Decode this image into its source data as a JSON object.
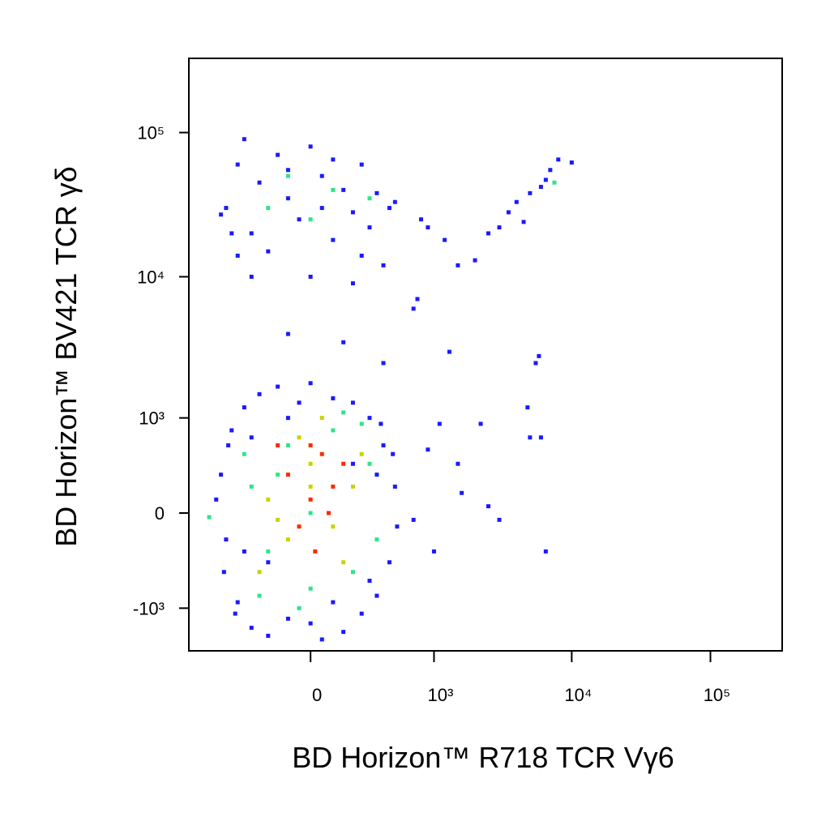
{
  "chart_data": {
    "type": "scatter",
    "x_label": "BD Horizon™ R718  TCR Vγ6",
    "y_label": "BD Horizon™ BV421  TCR γδ",
    "scale": "biexponential",
    "xlim": [
      -970,
      329000
    ],
    "ylim": [
      -2050,
      327000
    ],
    "xticks": [
      0,
      {
        "value": 1000,
        "label": "10³"
      },
      {
        "value": 10000,
        "label": "10⁴"
      },
      {
        "value": 100000,
        "label": "10⁵"
      }
    ],
    "yticks": [
      {
        "value": -1000,
        "label": "-10³"
      },
      0,
      {
        "value": 1000,
        "label": "10³"
      },
      {
        "value": 10000,
        "label": "10⁴"
      },
      {
        "value": 100000,
        "label": "10⁵"
      }
    ],
    "series": [
      {
        "color": "#1a1aff",
        "x": [
          -550,
          -500,
          -450,
          -400,
          -350,
          -300,
          -250,
          -200,
          -150,
          -100,
          0,
          50,
          100,
          150,
          200,
          250,
          300,
          350,
          400,
          450,
          500,
          520,
          480,
          -520,
          -480,
          -420,
          380,
          -600,
          -300,
          300,
          -200,
          200,
          -100,
          100,
          -350,
          350,
          0,
          -50,
          -500,
          -400,
          -300,
          -250,
          -200,
          -150,
          -100,
          -50,
          0,
          50,
          100,
          150,
          200,
          250,
          300,
          350,
          400,
          450,
          -450,
          -350,
          -300,
          0,
          200,
          500,
          -550,
          100,
          -100,
          250,
          -400,
          50,
          800,
          900,
          1200,
          1500,
          2000,
          2500,
          3000,
          3500,
          4000,
          5000,
          6000,
          7000,
          8000,
          10000,
          4500,
          6500,
          -100,
          150,
          400,
          700,
          750,
          1300,
          1000,
          6500,
          5800,
          5500,
          4800,
          2200,
          1100,
          1600,
          3000,
          2500,
          5000,
          6000,
          900,
          1500,
          700
        ],
        "values": [
          300,
          -200,
          800,
          -900,
          1200,
          -1400,
          1500,
          -1600,
          1700,
          -1200,
          1800,
          -1700,
          1400,
          -1500,
          1300,
          -1100,
          1000,
          -800,
          600,
          -400,
          200,
          -100,
          500,
          -500,
          600,
          -1100,
          900,
          100,
          700,
          -600,
          -400,
          400,
          1000,
          -900,
          -300,
          300,
          -1300,
          1300,
          30000,
          60000,
          20000,
          45000,
          15000,
          70000,
          35000,
          25000,
          80000,
          50000,
          18000,
          40000,
          28000,
          60000,
          22000,
          38000,
          12000,
          30000,
          20000,
          90000,
          10000,
          10000,
          9000,
          33000,
          27000,
          65000,
          55000,
          14000,
          14000,
          30000,
          25000,
          22000,
          18000,
          12000,
          13000,
          20000,
          22000,
          28000,
          33000,
          38000,
          42000,
          55000,
          65000,
          62000,
          24000,
          47000,
          4000,
          3500,
          2500,
          6000,
          7000,
          3000,
          -300,
          -300,
          2800,
          2500,
          1200,
          900,
          900,
          150,
          -50,
          50,
          700,
          700,
          550,
          400,
          -50
        ]
      },
      {
        "color": "#2ee58a",
        "x": [
          -300,
          -200,
          -100,
          0,
          100,
          200,
          300,
          350,
          -350,
          -250,
          150,
          -50,
          250,
          -150,
          0,
          -680,
          -200,
          0,
          100,
          300,
          -100,
          7500
        ],
        "values": [
          200,
          -300,
          600,
          -700,
          800,
          -500,
          400,
          -200,
          500,
          -800,
          1100,
          -1000,
          900,
          300,
          0,
          -30,
          30000,
          25000,
          40000,
          35000,
          50000,
          45000
        ]
      },
      {
        "color": "#c8d400",
        "x": [
          -200,
          -100,
          0,
          100,
          200,
          -50,
          150,
          -250,
          50,
          250,
          -150,
          0
        ],
        "values": [
          100,
          -200,
          400,
          -100,
          200,
          700,
          -400,
          -500,
          1000,
          500,
          -50,
          200
        ]
      },
      {
        "color": "#ff2a00",
        "x": [
          -100,
          0,
          50,
          100,
          -50,
          0,
          150,
          -150,
          20,
          80
        ],
        "values": [
          300,
          100,
          500,
          200,
          -100,
          600,
          400,
          600,
          -300,
          0
        ]
      }
    ]
  }
}
